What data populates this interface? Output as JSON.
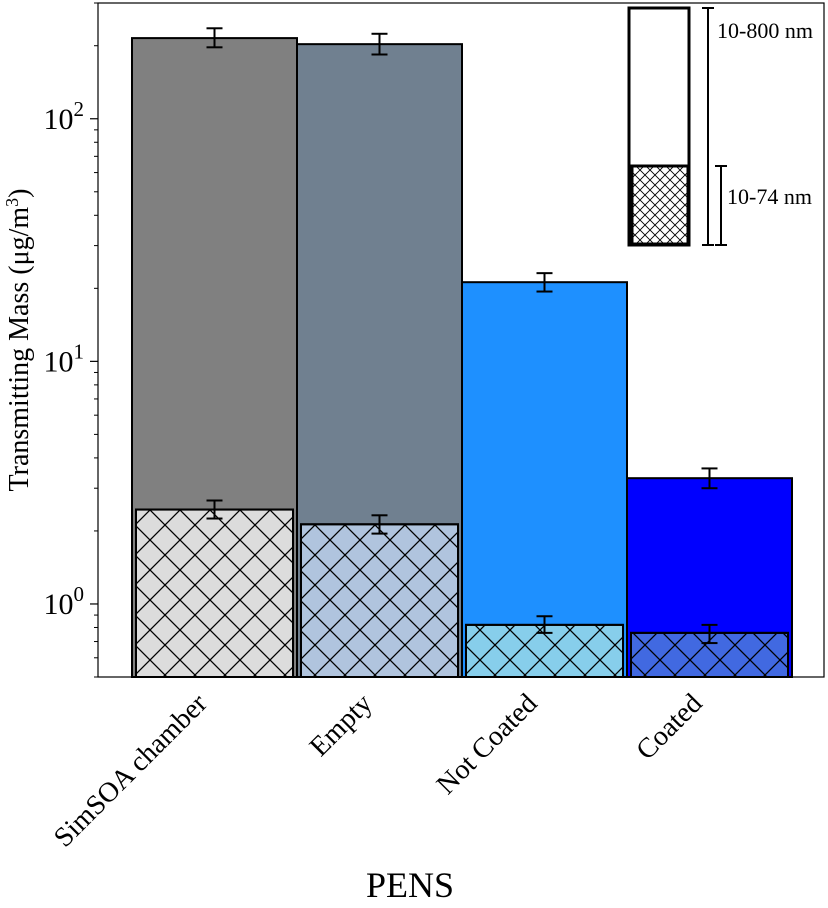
{
  "chart_data": {
    "type": "bar",
    "scale": "log",
    "title": "",
    "xlabel": "PENS",
    "ylabel": "Transmitting Mass (μg/m³)",
    "ylabel_main": "Transmitting Mass (μg/m",
    "ylabel_sup": "3",
    "ylabel_end": ")",
    "ylim": [
      0.5,
      300
    ],
    "yticks": [
      {
        "value": 1,
        "base": "10",
        "exp": "0"
      },
      {
        "value": 10,
        "base": "10",
        "exp": "1"
      },
      {
        "value": 100,
        "base": "10",
        "exp": "2"
      }
    ],
    "categories": [
      "SimSOA chamber",
      "Empty",
      "Not Coated",
      "Coated"
    ],
    "series": [
      {
        "name": "10-800 nm",
        "values": [
          215,
          203,
          21.2,
          3.3
        ],
        "err_low": [
          197,
          184,
          19.4,
          3.0
        ],
        "err_high": [
          236,
          224,
          23.1,
          3.62
        ],
        "colors": [
          "#808080",
          "#708090",
          "#1e90ff",
          "#0000ff"
        ],
        "hatch": false
      },
      {
        "name": "10-74 nm",
        "values": [
          2.45,
          2.13,
          0.82,
          0.76
        ],
        "err_low": [
          2.25,
          1.95,
          0.76,
          0.69
        ],
        "err_high": [
          2.67,
          2.32,
          0.89,
          0.82
        ],
        "colors": [
          "#dcdcdc",
          "#b0c4de",
          "#87ceeb",
          "#4169e1"
        ],
        "hatch": true
      }
    ],
    "legend": {
      "placement": "top-right",
      "entries": [
        "10-800 nm",
        "10-74 nm"
      ]
    }
  }
}
